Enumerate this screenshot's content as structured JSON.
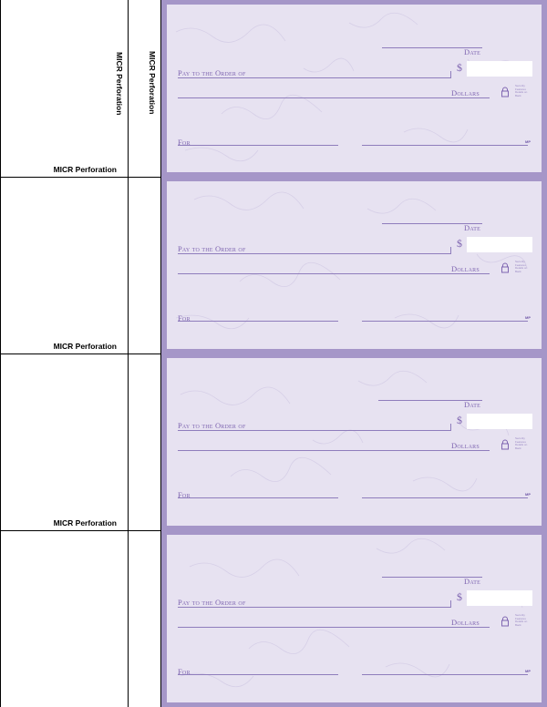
{
  "perforation_label": "MICR Perforation",
  "checks": [
    {
      "date_label": "Date",
      "pay_label": "Pay to the Order of",
      "currency_symbol": "$",
      "dollars_label": "Dollars",
      "memo_label": "For",
      "mp_mark": "MP",
      "security_text": "Security Features Details on Back"
    },
    {
      "date_label": "Date",
      "pay_label": "Pay to the Order of",
      "currency_symbol": "$",
      "dollars_label": "Dollars",
      "memo_label": "For",
      "mp_mark": "MP",
      "security_text": "Security Features Details on Back"
    },
    {
      "date_label": "Date",
      "pay_label": "Pay to the Order of",
      "currency_symbol": "$",
      "dollars_label": "Dollars",
      "memo_label": "For",
      "mp_mark": "MP",
      "security_text": "Security Features Details on Back"
    },
    {
      "date_label": "Date",
      "pay_label": "Pay to the Order of",
      "currency_symbol": "$",
      "dollars_label": "Dollars",
      "memo_label": "For",
      "mp_mark": "MP",
      "security_text": "Security Features Details on Back"
    }
  ],
  "colors": {
    "check_border": "#a596c8",
    "check_face": "#e7e2f1",
    "ink": "#7f66b1"
  }
}
